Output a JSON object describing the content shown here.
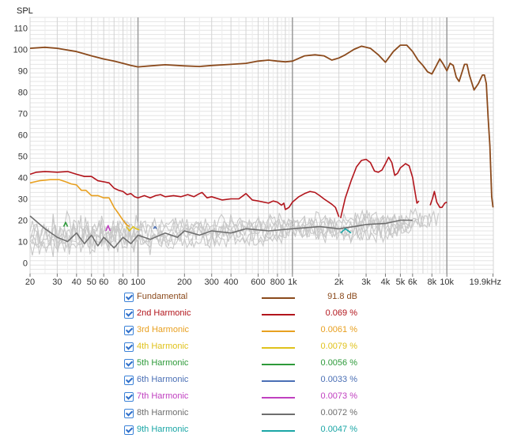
{
  "chart_data": {
    "type": "line",
    "ylabel": "SPL",
    "xscale": "log",
    "xlim": [
      20,
      20000
    ],
    "ylim": [
      -5,
      115
    ],
    "y_ticks": [
      0,
      10,
      20,
      30,
      40,
      50,
      60,
      70,
      80,
      90,
      100,
      110
    ],
    "x_ticks": [
      {
        "v": 20,
        "label": "20"
      },
      {
        "v": 30,
        "label": "30"
      },
      {
        "v": 40,
        "label": "40"
      },
      {
        "v": 50,
        "label": "50"
      },
      {
        "v": 60,
        "label": "60"
      },
      {
        "v": 80,
        "label": "80"
      },
      {
        "v": 100,
        "label": "100"
      },
      {
        "v": 200,
        "label": "200"
      },
      {
        "v": 300,
        "label": "300"
      },
      {
        "v": 400,
        "label": "400"
      },
      {
        "v": 600,
        "label": "600"
      },
      {
        "v": 800,
        "label": "800"
      },
      {
        "v": 1000,
        "label": "1k"
      },
      {
        "v": 2000,
        "label": "2k"
      },
      {
        "v": 3000,
        "label": "3k"
      },
      {
        "v": 4000,
        "label": "4k"
      },
      {
        "v": 5000,
        "label": "5k"
      },
      {
        "v": 6000,
        "label": "6k"
      },
      {
        "v": 8000,
        "label": "8k"
      },
      {
        "v": 10000,
        "label": "10k"
      },
      {
        "v": 19900,
        "label": "19.9kHz"
      }
    ],
    "series": [
      {
        "name": "Fundamental",
        "color": "#8b4a1c",
        "value_label": "91.8 dB",
        "points": [
          [
            20,
            100.5
          ],
          [
            25,
            101
          ],
          [
            30,
            100.5
          ],
          [
            40,
            99
          ],
          [
            50,
            97
          ],
          [
            60,
            95.5
          ],
          [
            70,
            94.5
          ],
          [
            80,
            93.5
          ],
          [
            90,
            92.5
          ],
          [
            100,
            91.8
          ],
          [
            120,
            92.3
          ],
          [
            150,
            92.8
          ],
          [
            200,
            92.3
          ],
          [
            250,
            92
          ],
          [
            300,
            92.5
          ],
          [
            400,
            93
          ],
          [
            500,
            93.5
          ],
          [
            600,
            94.5
          ],
          [
            700,
            95
          ],
          [
            800,
            94.5
          ],
          [
            900,
            94.2
          ],
          [
            1000,
            94.5
          ],
          [
            1200,
            97
          ],
          [
            1400,
            97.5
          ],
          [
            1600,
            97
          ],
          [
            1800,
            95
          ],
          [
            2000,
            96
          ],
          [
            2200,
            97.5
          ],
          [
            2500,
            100
          ],
          [
            2800,
            101.5
          ],
          [
            3200,
            100.5
          ],
          [
            3600,
            97.5
          ],
          [
            4000,
            94
          ],
          [
            4500,
            99
          ],
          [
            5000,
            102
          ],
          [
            5500,
            102
          ],
          [
            6000,
            99
          ],
          [
            6500,
            95
          ],
          [
            7000,
            92.5
          ],
          [
            7500,
            89.5
          ],
          [
            8000,
            88.5
          ],
          [
            8500,
            92
          ],
          [
            9000,
            95.5
          ],
          [
            9500,
            93
          ],
          [
            10000,
            90
          ],
          [
            10500,
            93.5
          ],
          [
            11000,
            92.5
          ],
          [
            11500,
            87
          ],
          [
            12000,
            85
          ],
          [
            13000,
            93
          ],
          [
            13500,
            93
          ],
          [
            14000,
            88
          ],
          [
            15000,
            81
          ],
          [
            16000,
            84
          ],
          [
            17000,
            88
          ],
          [
            17500,
            88
          ],
          [
            18000,
            84
          ],
          [
            18500,
            68
          ],
          [
            19000,
            55
          ],
          [
            19500,
            31
          ],
          [
            19900,
            26
          ]
        ]
      },
      {
        "name": "2nd Harmonic",
        "color": "#b2151c",
        "value_label": "0.069 %",
        "points": [
          [
            20,
            41.5
          ],
          [
            22,
            42.5
          ],
          [
            25,
            42.8
          ],
          [
            30,
            42.5
          ],
          [
            35,
            42.8
          ],
          [
            40,
            41.5
          ],
          [
            45,
            40.5
          ],
          [
            50,
            40.5
          ],
          [
            55,
            38.5
          ],
          [
            60,
            38
          ],
          [
            65,
            37.5
          ],
          [
            70,
            35
          ],
          [
            75,
            34
          ],
          [
            80,
            33.5
          ],
          [
            85,
            32
          ],
          [
            90,
            32.5
          ],
          [
            95,
            31
          ],
          [
            100,
            30.5
          ],
          [
            110,
            31.5
          ],
          [
            120,
            30.5
          ],
          [
            130,
            31.5
          ],
          [
            140,
            32
          ],
          [
            150,
            31
          ],
          [
            170,
            31.5
          ],
          [
            190,
            31
          ],
          [
            210,
            32
          ],
          [
            230,
            31
          ],
          [
            250,
            32.5
          ],
          [
            260,
            33
          ],
          [
            280,
            30.5
          ],
          [
            300,
            31
          ],
          [
            350,
            29.5
          ],
          [
            400,
            30
          ],
          [
            450,
            30
          ],
          [
            500,
            32.5
          ],
          [
            550,
            29.5
          ],
          [
            600,
            29
          ],
          [
            700,
            28
          ],
          [
            750,
            29
          ],
          [
            800,
            28.5
          ],
          [
            850,
            27
          ],
          [
            880,
            28
          ],
          [
            900,
            25
          ],
          [
            950,
            26
          ],
          [
            1000,
            28.5
          ],
          [
            1100,
            31
          ],
          [
            1200,
            32.5
          ],
          [
            1300,
            33.5
          ],
          [
            1400,
            33
          ],
          [
            1500,
            31.5
          ],
          [
            1600,
            30
          ],
          [
            1800,
            27.5
          ],
          [
            1900,
            26
          ],
          [
            2000,
            21.5
          ]
        ]
      },
      {
        "name": "2nd Harmonic",
        "color": "#b2151c",
        "value_label": "",
        "points": [
          [
            2050,
            21
          ],
          [
            2200,
            30.5
          ],
          [
            2400,
            38.5
          ],
          [
            2600,
            45
          ],
          [
            2800,
            48
          ],
          [
            3000,
            48.5
          ],
          [
            3200,
            47
          ],
          [
            3400,
            43
          ],
          [
            3600,
            42.5
          ],
          [
            3800,
            43.5
          ],
          [
            4000,
            46.5
          ],
          [
            4200,
            49.5
          ],
          [
            4400,
            47
          ],
          [
            4600,
            41
          ],
          [
            4800,
            42
          ],
          [
            5000,
            44.5
          ],
          [
            5400,
            46.5
          ],
          [
            5700,
            45.5
          ],
          [
            6000,
            40
          ],
          [
            6400,
            28
          ],
          [
            6600,
            29
          ]
        ]
      },
      {
        "name": "2nd Harmonic",
        "color": "#b2151c",
        "value_label": "",
        "points": [
          [
            7800,
            27
          ],
          [
            8100,
            30.5
          ],
          [
            8300,
            33.5
          ],
          [
            8600,
            28.5
          ],
          [
            9000,
            26
          ],
          [
            9300,
            26
          ],
          [
            9700,
            28
          ],
          [
            10000,
            28.5
          ]
        ]
      },
      {
        "name": "3rd Harmonic",
        "color": "#e8a020",
        "value_label": "0.0061 %",
        "points": [
          [
            20,
            37.5
          ],
          [
            23,
            38.5
          ],
          [
            27,
            39
          ],
          [
            31,
            39
          ],
          [
            34,
            38
          ],
          [
            37,
            37
          ],
          [
            40,
            36.5
          ],
          [
            43,
            34
          ],
          [
            46,
            34
          ],
          [
            50,
            31.5
          ],
          [
            55,
            31.5
          ],
          [
            60,
            30.5
          ],
          [
            65,
            30.5
          ],
          [
            70,
            26
          ],
          [
            75,
            23
          ],
          [
            80,
            20
          ],
          [
            84,
            18
          ],
          [
            88,
            17
          ]
        ]
      },
      {
        "name": "4th Harmonic",
        "color": "#e0c21c",
        "value_label": "0.0079 %",
        "points": [
          [
            84,
            17
          ],
          [
            88,
            15
          ],
          [
            93,
            17
          ],
          [
            97,
            16
          ],
          [
            102,
            15.5
          ]
        ]
      },
      {
        "name": "5th Harmonic",
        "color": "#2e9a3a",
        "value_label": "0.0056 %",
        "points": [
          [
            33,
            17
          ],
          [
            34,
            19
          ],
          [
            35,
            17
          ]
        ]
      },
      {
        "name": "6th Harmonic",
        "color": "#4a6fb5",
        "value_label": "0.0033 %",
        "points": [
          [
            126,
            16
          ],
          [
            129,
            17
          ],
          [
            132,
            16
          ]
        ]
      },
      {
        "name": "7th Harmonic",
        "color": "#c040c0",
        "value_label": "0.0073 %",
        "points": [
          [
            62,
            15
          ],
          [
            64,
            17.5
          ],
          [
            66,
            15
          ]
        ]
      },
      {
        "name": "8th Harmonic",
        "color": "#6e6e6e",
        "value_label": "0.0072 %",
        "points": [
          [
            20,
            22
          ],
          [
            25,
            16
          ],
          [
            30,
            12
          ],
          [
            35,
            10
          ],
          [
            40,
            14
          ],
          [
            45,
            9
          ],
          [
            50,
            13
          ],
          [
            55,
            8
          ],
          [
            60,
            12
          ],
          [
            70,
            7
          ],
          [
            80,
            12
          ],
          [
            90,
            9
          ],
          [
            100,
            13
          ],
          [
            120,
            11
          ],
          [
            150,
            14
          ],
          [
            180,
            12
          ],
          [
            200,
            15
          ],
          [
            250,
            13
          ],
          [
            300,
            15
          ],
          [
            400,
            14
          ],
          [
            500,
            16
          ],
          [
            700,
            15
          ],
          [
            1000,
            16
          ],
          [
            1500,
            17
          ],
          [
            2000,
            16
          ],
          [
            2500,
            17
          ],
          [
            3000,
            18
          ],
          [
            4000,
            18.5
          ],
          [
            5000,
            20
          ],
          [
            6000,
            20
          ]
        ]
      },
      {
        "name": "9th Harmonic",
        "color": "#1aa6a6",
        "value_label": "0.0047 %",
        "points": [
          [
            2050,
            14
          ],
          [
            2200,
            16
          ],
          [
            2400,
            14
          ]
        ]
      }
    ]
  },
  "legend": [
    {
      "name": "Fundamental",
      "color": "#8b4a1c",
      "value": "91.8 dB"
    },
    {
      "name": "2nd Harmonic",
      "color": "#b2151c",
      "value": "0.069 %"
    },
    {
      "name": "3rd Harmonic",
      "color": "#e8a020",
      "value": "0.0061 %"
    },
    {
      "name": "4th Harmonic",
      "color": "#e0c21c",
      "value": "0.0079 %"
    },
    {
      "name": "5th Harmonic",
      "color": "#2e9a3a",
      "value": "0.0056 %"
    },
    {
      "name": "6th Harmonic",
      "color": "#4a6fb5",
      "value": "0.0033 %"
    },
    {
      "name": "7th Harmonic",
      "color": "#c040c0",
      "value": "0.0073 %"
    },
    {
      "name": "8th Harmonic",
      "color": "#6e6e6e",
      "value": "0.0072 %"
    },
    {
      "name": "9th Harmonic",
      "color": "#1aa6a6",
      "value": "0.0047 %"
    }
  ],
  "noise_floor_color": "#c8c8c8",
  "grid_color": "#d4d4d4",
  "major_grid_color": "#9a9a9a"
}
